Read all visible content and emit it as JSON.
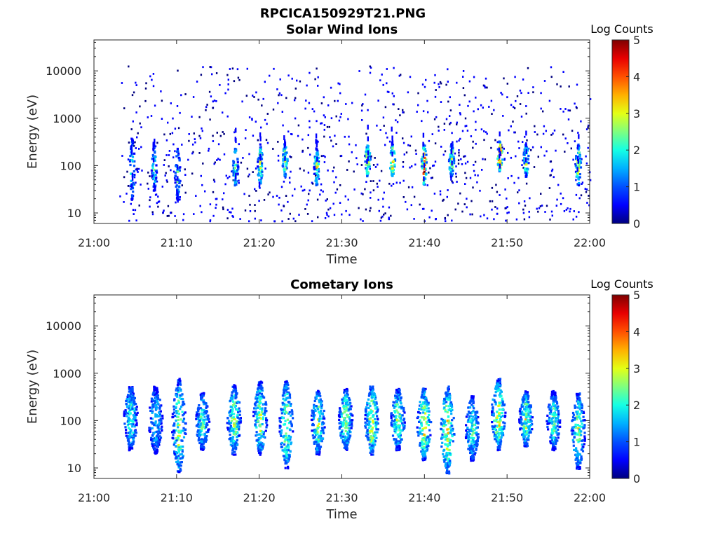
{
  "figure": {
    "title": "RPCICA150929T21.PNG"
  },
  "colormap": [
    "#00007f",
    "#0000ff",
    "#0050ff",
    "#00b0ff",
    "#14ffe4",
    "#7fff7f",
    "#e4ff14",
    "#ffb000",
    "#ff5000",
    "#e80000",
    "#7f0000"
  ],
  "chart_data": [
    {
      "type": "heatmap",
      "title": "Solar Wind Ions",
      "xlabel": "Time",
      "ylabel": "Energy (eV)",
      "x_ticks": [
        "21:00",
        "21:10",
        "21:20",
        "21:30",
        "21:40",
        "21:50",
        "22:00"
      ],
      "xlim": [
        "21:00",
        "22:00"
      ],
      "y_scale": "log",
      "y_ticks": [
        10,
        100,
        1000,
        10000
      ],
      "y_tick_labels": [
        "10",
        "100",
        "1000",
        "10000"
      ],
      "ylim": [
        6,
        45000
      ],
      "colorbar": {
        "label": "Log Counts",
        "range": [
          0,
          5
        ],
        "ticks": [
          "0",
          "1",
          "2",
          "3",
          "4",
          "5"
        ]
      },
      "bursts": [
        {
          "t": "21:04:30",
          "e_lo": 20,
          "e_hi": 400,
          "level": 0.3
        },
        {
          "t": "21:07:10",
          "e_lo": 30,
          "e_hi": 300,
          "level": 0.3
        },
        {
          "t": "21:10:00",
          "e_lo": 20,
          "e_hi": 250,
          "level": 0.3
        },
        {
          "t": "21:17:00",
          "e_lo": 40,
          "e_hi": 250,
          "level": 0.4
        },
        {
          "t": "21:20:00",
          "e_lo": 40,
          "e_hi": 300,
          "level": 0.4
        },
        {
          "t": "21:23:00",
          "e_lo": 60,
          "e_hi": 300,
          "level": 0.4
        },
        {
          "t": "21:26:50",
          "e_lo": 40,
          "e_hi": 250,
          "level": 0.4
        },
        {
          "t": "21:33:00",
          "e_lo": 60,
          "e_hi": 300,
          "level": 0.5
        },
        {
          "t": "21:36:00",
          "e_lo": 60,
          "e_hi": 300,
          "level": 0.5
        },
        {
          "t": "21:39:50",
          "e_lo": 40,
          "e_hi": 300,
          "level": 0.6
        },
        {
          "t": "21:43:10",
          "e_lo": 60,
          "e_hi": 300,
          "level": 0.4
        },
        {
          "t": "21:49:00",
          "e_lo": 80,
          "e_hi": 350,
          "level": 0.6
        },
        {
          "t": "21:52:10",
          "e_lo": 60,
          "e_hi": 300,
          "level": 0.4
        },
        {
          "t": "21:58:30",
          "e_lo": 40,
          "e_hi": 300,
          "level": 0.4
        }
      ],
      "scatter_range": {
        "t_start": "21:03:00",
        "t_end": "22:00:00",
        "e_lo": 7,
        "e_hi": 13000,
        "level": 0.15
      }
    },
    {
      "type": "heatmap",
      "title": "Cometary Ions",
      "xlabel": "Time",
      "ylabel": "Energy (eV)",
      "x_ticks": [
        "21:00",
        "21:10",
        "21:20",
        "21:30",
        "21:40",
        "21:50",
        "22:00"
      ],
      "xlim": [
        "21:00",
        "22:00"
      ],
      "y_scale": "log",
      "y_ticks": [
        10,
        100,
        1000,
        10000
      ],
      "y_tick_labels": [
        "10",
        "100",
        "1000",
        "10000"
      ],
      "ylim": [
        6,
        45000
      ],
      "colorbar": {
        "label": "Log Counts",
        "range": [
          0,
          5
        ],
        "ticks": [
          "0",
          "1",
          "2",
          "3",
          "4",
          "5"
        ]
      },
      "bursts": [
        {
          "t": "21:04:20",
          "e_lo": 25,
          "e_hi": 550,
          "level": 0.3
        },
        {
          "t": "21:07:20",
          "e_lo": 20,
          "e_hi": 550,
          "level": 0.25
        },
        {
          "t": "21:10:10",
          "e_lo": 8,
          "e_hi": 800,
          "level": 0.35
        },
        {
          "t": "21:13:00",
          "e_lo": 25,
          "e_hi": 400,
          "level": 0.3
        },
        {
          "t": "21:16:50",
          "e_lo": 20,
          "e_hi": 600,
          "level": 0.35
        },
        {
          "t": "21:20:00",
          "e_lo": 20,
          "e_hi": 700,
          "level": 0.35
        },
        {
          "t": "21:23:10",
          "e_lo": 10,
          "e_hi": 750,
          "level": 0.35
        },
        {
          "t": "21:27:00",
          "e_lo": 20,
          "e_hi": 450,
          "level": 0.35
        },
        {
          "t": "21:30:20",
          "e_lo": 25,
          "e_hi": 500,
          "level": 0.35
        },
        {
          "t": "21:33:30",
          "e_lo": 20,
          "e_hi": 550,
          "level": 0.4
        },
        {
          "t": "21:36:40",
          "e_lo": 25,
          "e_hi": 500,
          "level": 0.35
        },
        {
          "t": "21:39:50",
          "e_lo": 15,
          "e_hi": 500,
          "level": 0.4
        },
        {
          "t": "21:42:40",
          "e_lo": 8,
          "e_hi": 550,
          "level": 0.4
        },
        {
          "t": "21:45:40",
          "e_lo": 15,
          "e_hi": 350,
          "level": 0.3
        },
        {
          "t": "21:48:50",
          "e_lo": 25,
          "e_hi": 800,
          "level": 0.4
        },
        {
          "t": "21:52:10",
          "e_lo": 30,
          "e_hi": 450,
          "level": 0.35
        },
        {
          "t": "21:55:30",
          "e_lo": 25,
          "e_hi": 450,
          "level": 0.3
        },
        {
          "t": "21:58:30",
          "e_lo": 10,
          "e_hi": 400,
          "level": 0.35
        }
      ]
    }
  ]
}
